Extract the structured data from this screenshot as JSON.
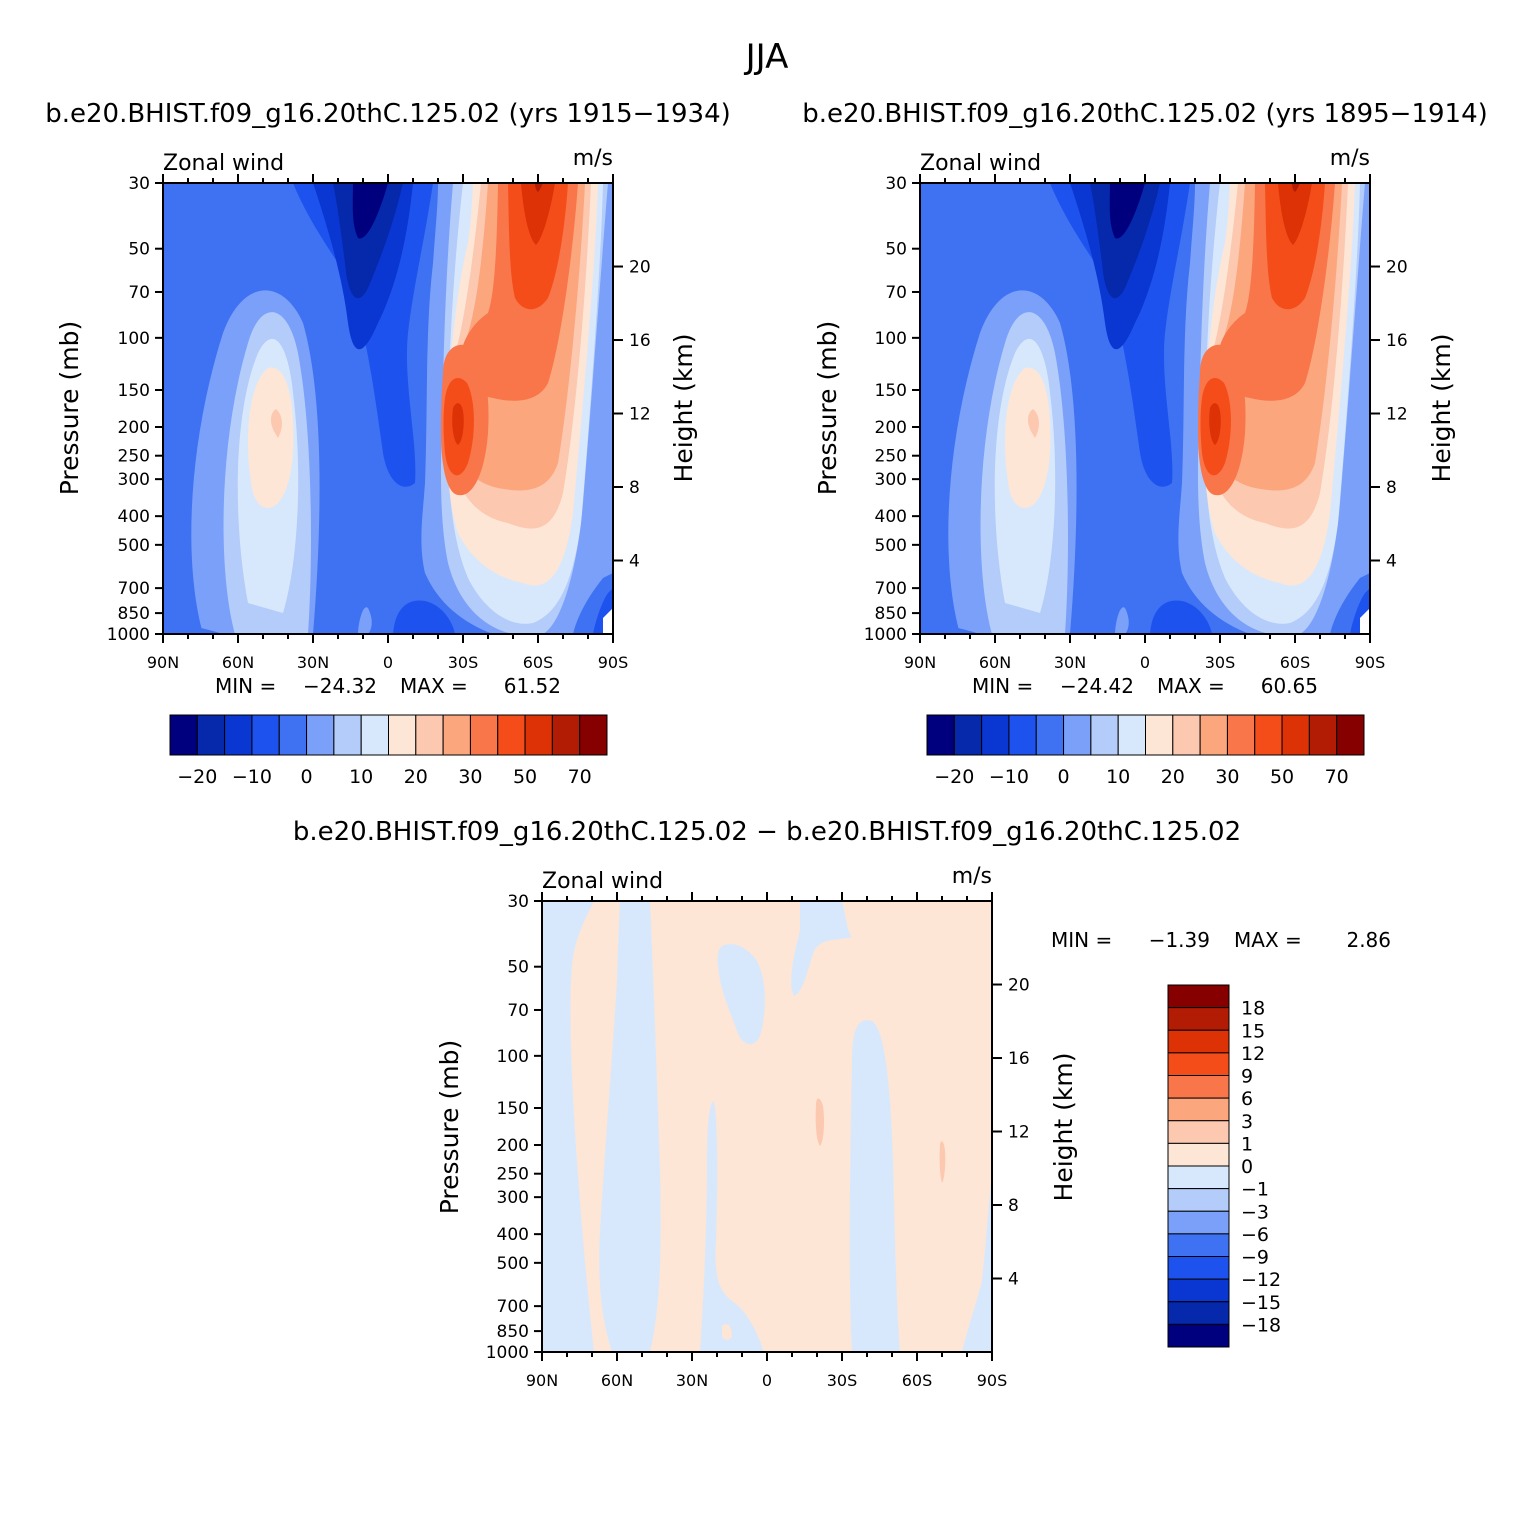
{
  "figure": {
    "title": "JJA",
    "panels": [
      {
        "title": "b.e20.BHIST.f09_g16.20thC.125.02 (yrs 1915−1934)",
        "left_label": "Zonal wind",
        "right_label": "m/s",
        "ylabel": "Pressure (mb)",
        "ylabel_right": "Height (km)",
        "min_label": "MIN =",
        "min_value": "−24.32",
        "max_label": "MAX =",
        "max_value": "61.52"
      },
      {
        "title": "b.e20.BHIST.f09_g16.20thC.125.02 (yrs 1895−1914)",
        "left_label": "Zonal wind",
        "right_label": "m/s",
        "ylabel": "Pressure (mb)",
        "ylabel_right": "Height (km)",
        "min_label": "MIN =",
        "min_value": "−24.42",
        "max_label": "MAX =",
        "max_value": "60.65"
      },
      {
        "title": "b.e20.BHIST.f09_g16.20thC.125.02 − b.e20.BHIST.f09_g16.20thC.125.02",
        "left_label": "Zonal wind",
        "right_label": "m/s",
        "ylabel": "Pressure (mb)",
        "ylabel_right": "Height (km)",
        "min_label": "MIN =",
        "min_value": "−1.39",
        "max_label": "MAX =",
        "max_value": "2.86"
      }
    ]
  },
  "chart_data": [
    {
      "type": "heatmap",
      "title": "b.e20.BHIST.f09_g16.20thC.125.02 (yrs 1915−1934)",
      "variable": "Zonal wind",
      "units": "m/s",
      "xlabel": "",
      "ylabel": "Pressure (mb)",
      "ylabel_right": "Height (km)",
      "x_ticks": [
        "90N",
        "60N",
        "30N",
        "0",
        "30S",
        "60S",
        "90S"
      ],
      "x_values": [
        90,
        60,
        30,
        0,
        -30,
        -60,
        -90
      ],
      "y_ticks": [
        30,
        50,
        70,
        100,
        150,
        200,
        250,
        300,
        400,
        500,
        700,
        850,
        1000
      ],
      "y_right_ticks": [
        4,
        8,
        12,
        16,
        20
      ],
      "ylim": [
        1000,
        30
      ],
      "min": -24.32,
      "max": 61.52,
      "colorbar_levels": [
        -25,
        -20,
        -15,
        -10,
        -5,
        0,
        5,
        10,
        15,
        20,
        25,
        30,
        40,
        50,
        60,
        70
      ],
      "colorbar_tick_labels": [
        "−20",
        "−10",
        "0",
        "10",
        "20",
        "30",
        "50",
        "70"
      ],
      "features": [
        {
          "kind": "min",
          "lat": -20,
          "pressure": 30,
          "value": -24
        },
        {
          "kind": "max",
          "lat": -30,
          "pressure": 200,
          "value": 61
        },
        {
          "kind": "max",
          "lat": -60,
          "pressure": 30,
          "value": 55
        },
        {
          "kind": "local_max",
          "lat": 45,
          "pressure": 200,
          "value": 22
        }
      ]
    },
    {
      "type": "heatmap",
      "title": "b.e20.BHIST.f09_g16.20thC.125.02 (yrs 1895−1914)",
      "variable": "Zonal wind",
      "units": "m/s",
      "xlabel": "",
      "ylabel": "Pressure (mb)",
      "ylabel_right": "Height (km)",
      "x_ticks": [
        "90N",
        "60N",
        "30N",
        "0",
        "30S",
        "60S",
        "90S"
      ],
      "x_values": [
        90,
        60,
        30,
        0,
        -30,
        -60,
        -90
      ],
      "y_ticks": [
        30,
        50,
        70,
        100,
        150,
        200,
        250,
        300,
        400,
        500,
        700,
        850,
        1000
      ],
      "y_right_ticks": [
        4,
        8,
        12,
        16,
        20
      ],
      "ylim": [
        1000,
        30
      ],
      "min": -24.42,
      "max": 60.65,
      "colorbar_levels": [
        -25,
        -20,
        -15,
        -10,
        -5,
        0,
        5,
        10,
        15,
        20,
        25,
        30,
        40,
        50,
        60,
        70
      ],
      "colorbar_tick_labels": [
        "−20",
        "−10",
        "0",
        "10",
        "20",
        "30",
        "50",
        "70"
      ],
      "features": [
        {
          "kind": "min",
          "lat": -20,
          "pressure": 30,
          "value": -24
        },
        {
          "kind": "max",
          "lat": -30,
          "pressure": 200,
          "value": 60
        },
        {
          "kind": "max",
          "lat": -60,
          "pressure": 30,
          "value": 55
        },
        {
          "kind": "local_max",
          "lat": 45,
          "pressure": 200,
          "value": 22
        }
      ]
    },
    {
      "type": "heatmap",
      "title": "b.e20.BHIST.f09_g16.20thC.125.02 − b.e20.BHIST.f09_g16.20thC.125.02",
      "variable": "Zonal wind",
      "units": "m/s",
      "xlabel": "",
      "ylabel": "Pressure (mb)",
      "ylabel_right": "Height (km)",
      "x_ticks": [
        "90N",
        "60N",
        "30N",
        "0",
        "30S",
        "60S",
        "90S"
      ],
      "x_values": [
        90,
        60,
        30,
        0,
        -30,
        -60,
        -90
      ],
      "y_ticks": [
        30,
        50,
        70,
        100,
        150,
        200,
        250,
        300,
        400,
        500,
        700,
        850,
        1000
      ],
      "y_right_ticks": [
        4,
        8,
        12,
        16,
        20
      ],
      "ylim": [
        1000,
        30
      ],
      "min": -1.39,
      "max": 2.86,
      "colorbar_levels": [
        -18,
        -15,
        -12,
        -9,
        -6,
        -3,
        -1,
        0,
        1,
        3,
        6,
        9,
        12,
        15,
        18
      ],
      "colorbar_tick_labels": [
        "18",
        "15",
        "12",
        "9",
        "6",
        "3",
        "1",
        "0",
        "−1",
        "−3",
        "−6",
        "−9",
        "−12",
        "−15",
        "−18"
      ],
      "features": [
        {
          "kind": "negative_band",
          "lat_from": 60,
          "lat_to": 47,
          "pressure_from": 30,
          "pressure_to": 1000,
          "range": "-1 to 0"
        },
        {
          "kind": "negative_band",
          "lat_from": -35,
          "lat_to": -52,
          "pressure_from": 80,
          "pressure_to": 1000,
          "range": "-1 to 0"
        },
        {
          "kind": "positive_background",
          "range": "0 to 1"
        }
      ]
    }
  ],
  "colors": {
    "diverging": [
      "#00007f",
      "#0628aa",
      "#0a36d2",
      "#1e52ee",
      "#3e72f2",
      "#7aa0fa",
      "#b4ccfa",
      "#d8e8fc",
      "#fde6d6",
      "#fcc8b0",
      "#fca67e",
      "#f8764a",
      "#f44d1a",
      "#dc3206",
      "#b21c04",
      "#870000"
    ]
  }
}
